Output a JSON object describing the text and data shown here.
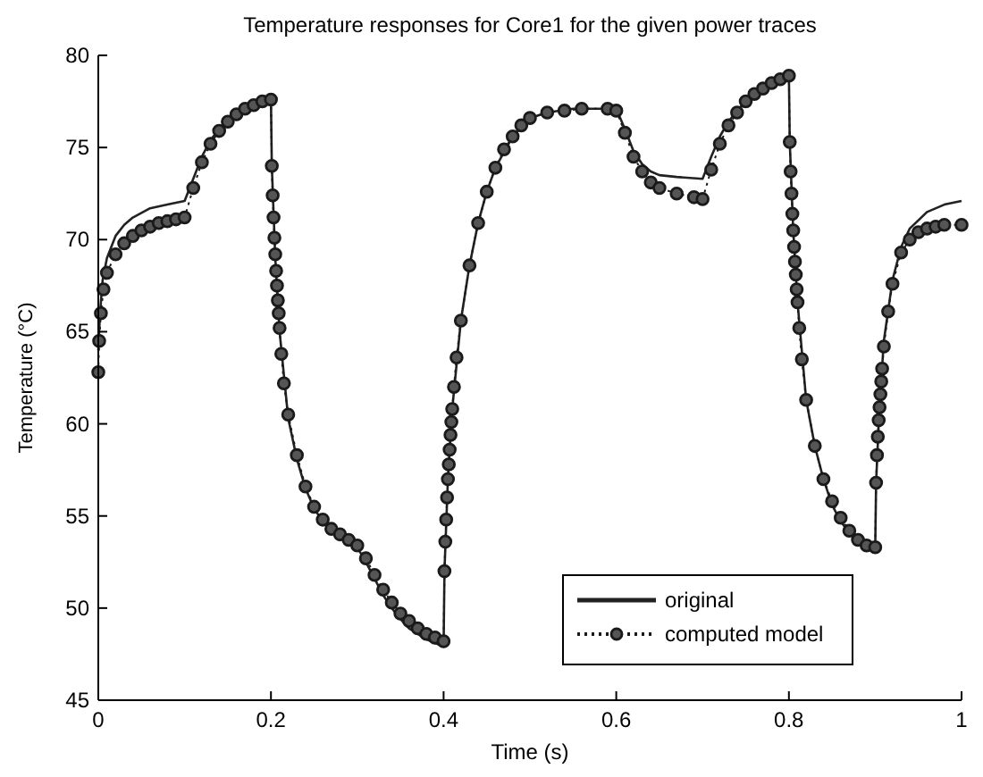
{
  "chart_data": {
    "type": "line",
    "title": "Temperature responses for Core1 for the given power traces",
    "xlabel": "Time (s)",
    "ylabel": "Temperature (°C)",
    "xlim": [
      0,
      1
    ],
    "ylim": [
      45,
      80
    ],
    "xticks": [
      0,
      0.2,
      0.4,
      0.6,
      0.8,
      1
    ],
    "yticks": [
      45,
      50,
      55,
      60,
      65,
      70,
      75,
      80
    ],
    "grid": false,
    "legend": "bottom right",
    "series": [
      {
        "name": "original",
        "color": "#222222",
        "line_style": "solid",
        "marker": "none",
        "x": [
          0,
          0.002,
          0.005,
          0.01,
          0.02,
          0.03,
          0.04,
          0.06,
          0.08,
          0.1,
          0.11,
          0.12,
          0.13,
          0.14,
          0.15,
          0.16,
          0.18,
          0.2,
          0.201,
          0.205,
          0.21,
          0.22,
          0.23,
          0.24,
          0.25,
          0.26,
          0.28,
          0.3,
          0.31,
          0.32,
          0.33,
          0.34,
          0.35,
          0.36,
          0.38,
          0.4,
          0.401,
          0.405,
          0.41,
          0.42,
          0.43,
          0.44,
          0.45,
          0.46,
          0.48,
          0.5,
          0.52,
          0.55,
          0.6,
          0.61,
          0.62,
          0.63,
          0.64,
          0.65,
          0.67,
          0.7,
          0.71,
          0.72,
          0.73,
          0.74,
          0.75,
          0.76,
          0.78,
          0.8,
          0.801,
          0.805,
          0.81,
          0.82,
          0.83,
          0.84,
          0.85,
          0.86,
          0.88,
          0.9,
          0.901,
          0.905,
          0.91,
          0.92,
          0.93,
          0.94,
          0.96,
          0.98,
          1.0
        ],
        "values": [
          64,
          66,
          67.8,
          69,
          70.2,
          70.8,
          71.2,
          71.7,
          71.9,
          72.1,
          73.3,
          74.5,
          75.4,
          76,
          76.5,
          76.9,
          77.3,
          77.6,
          74,
          69,
          65,
          60.3,
          58.1,
          56.5,
          55.4,
          54.7,
          53.9,
          53.3,
          52.5,
          51.6,
          50.7,
          50,
          49.4,
          48.9,
          48.3,
          47.9,
          52,
          57,
          60.8,
          65.6,
          68.6,
          70.9,
          72.6,
          73.9,
          75.6,
          76.6,
          76.9,
          77.1,
          77.1,
          76,
          74.8,
          74.1,
          73.7,
          73.5,
          73.4,
          73.3,
          74.5,
          75.6,
          76.4,
          77,
          77.5,
          77.9,
          78.5,
          78.9,
          75.3,
          70.5,
          66.6,
          61.3,
          58.8,
          57,
          55.6,
          54.7,
          53.5,
          53.2,
          56.8,
          61,
          64.5,
          67.8,
          69.6,
          70.6,
          71.5,
          71.9,
          72.1
        ]
      },
      {
        "name": "computed model",
        "color": "#1a1a1a",
        "line_style": "dotted",
        "marker": "circle",
        "x": [
          0,
          0.001,
          0.003,
          0.006,
          0.01,
          0.02,
          0.03,
          0.04,
          0.05,
          0.06,
          0.07,
          0.08,
          0.09,
          0.1,
          0.11,
          0.12,
          0.13,
          0.14,
          0.15,
          0.16,
          0.17,
          0.18,
          0.19,
          0.2,
          0.201,
          0.202,
          0.203,
          0.204,
          0.205,
          0.206,
          0.207,
          0.208,
          0.209,
          0.21,
          0.212,
          0.215,
          0.22,
          0.23,
          0.24,
          0.25,
          0.26,
          0.27,
          0.28,
          0.29,
          0.3,
          0.31,
          0.32,
          0.33,
          0.34,
          0.35,
          0.36,
          0.37,
          0.38,
          0.39,
          0.4,
          0.401,
          0.402,
          0.403,
          0.404,
          0.405,
          0.406,
          0.407,
          0.408,
          0.409,
          0.41,
          0.412,
          0.415,
          0.42,
          0.43,
          0.44,
          0.45,
          0.46,
          0.47,
          0.48,
          0.49,
          0.5,
          0.52,
          0.54,
          0.56,
          0.59,
          0.6,
          0.61,
          0.62,
          0.63,
          0.64,
          0.65,
          0.67,
          0.69,
          0.7,
          0.71,
          0.72,
          0.73,
          0.74,
          0.75,
          0.76,
          0.77,
          0.78,
          0.79,
          0.8,
          0.801,
          0.802,
          0.803,
          0.804,
          0.805,
          0.806,
          0.807,
          0.808,
          0.809,
          0.81,
          0.812,
          0.815,
          0.82,
          0.83,
          0.84,
          0.85,
          0.86,
          0.87,
          0.88,
          0.89,
          0.9,
          0.901,
          0.902,
          0.903,
          0.904,
          0.905,
          0.906,
          0.907,
          0.908,
          0.91,
          0.915,
          0.92,
          0.93,
          0.94,
          0.95,
          0.96,
          0.97,
          0.98,
          1.0
        ],
        "values": [
          62.8,
          64.5,
          66,
          67.3,
          68.2,
          69.2,
          69.8,
          70.2,
          70.5,
          70.7,
          70.9,
          71,
          71.1,
          71.2,
          72.8,
          74.2,
          75.2,
          75.9,
          76.4,
          76.8,
          77.1,
          77.3,
          77.5,
          77.6,
          74,
          72.4,
          71.2,
          70.1,
          69.2,
          68.3,
          67.5,
          66.7,
          66,
          65.2,
          63.8,
          62.2,
          60.5,
          58.3,
          56.6,
          55.5,
          54.8,
          54.3,
          54,
          53.7,
          53.4,
          52.7,
          51.8,
          51,
          50.3,
          49.7,
          49.3,
          48.9,
          48.6,
          48.4,
          48.2,
          52,
          53.6,
          54.8,
          56,
          57,
          57.8,
          58.6,
          59.4,
          60.1,
          60.8,
          62,
          63.6,
          65.6,
          68.6,
          70.9,
          72.6,
          73.9,
          74.9,
          75.6,
          76.2,
          76.6,
          76.9,
          77,
          77.1,
          77.1,
          77,
          75.8,
          74.5,
          73.7,
          73.1,
          72.8,
          72.5,
          72.3,
          72.2,
          73.8,
          75.2,
          76.2,
          76.9,
          77.5,
          77.9,
          78.2,
          78.5,
          78.7,
          78.9,
          75.3,
          73.7,
          72.5,
          71.4,
          70.5,
          69.6,
          68.8,
          68.1,
          67.3,
          66.6,
          65.2,
          63.5,
          61.3,
          58.8,
          57,
          55.8,
          54.9,
          54.2,
          53.7,
          53.4,
          53.3,
          56.8,
          58.3,
          59.3,
          60.2,
          60.9,
          61.6,
          62.3,
          63,
          64.2,
          66.1,
          67.6,
          69.3,
          70,
          70.4,
          70.6,
          70.7,
          70.8,
          70.8
        ]
      }
    ]
  }
}
